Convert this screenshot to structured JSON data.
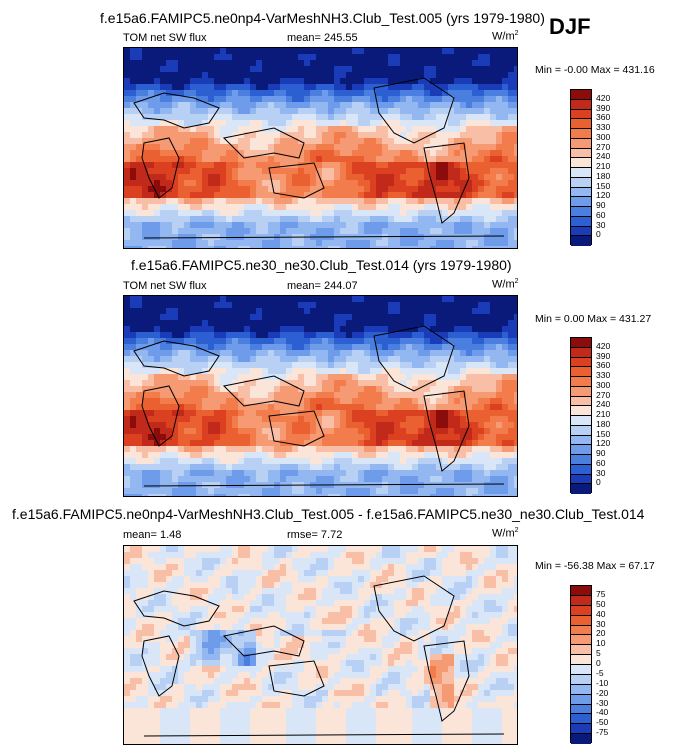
{
  "season_label": "DJF",
  "chart_data": [
    {
      "type": "heatmap",
      "title": "f.e15a6.FAMIPC5.ne0np4-VarMeshNH3.Club_Test.005 (yrs 1979-1980)",
      "left_label": "TOM net SW flux",
      "center_label": "mean= 245.55",
      "units": "W/m",
      "units_sup": "2",
      "min_max": "Min = -0.00 Max = 431.16",
      "colorbar_labels": [
        "420",
        "390",
        "360",
        "330",
        "300",
        "270",
        "240",
        "210",
        "180",
        "150",
        "120",
        "90",
        "60",
        "30",
        "0"
      ],
      "colorbar_colors": [
        "#8c0b0b",
        "#c12a1a",
        "#db4120",
        "#ea6030",
        "#f27c4b",
        "#f59a72",
        "#f8bea6",
        "#fbe4d8",
        "#d8e6f8",
        "#b8d0f4",
        "#93b7f0",
        "#6e9cea",
        "#4a7fe0",
        "#2c5fd2",
        "#1a3cb8",
        "#0a1a7a"
      ]
    },
    {
      "type": "heatmap",
      "title": "f.e15a6.FAMIPC5.ne30_ne30.Club_Test.014 (yrs 1979-1980)",
      "left_label": "TOM net SW flux",
      "center_label": "mean= 244.07",
      "units": "W/m",
      "units_sup": "2",
      "min_max": "Min = 0.00 Max = 431.27",
      "colorbar_labels": [
        "420",
        "390",
        "360",
        "330",
        "300",
        "270",
        "240",
        "210",
        "180",
        "150",
        "120",
        "90",
        "60",
        "30",
        "0"
      ],
      "colorbar_colors": [
        "#8c0b0b",
        "#c12a1a",
        "#db4120",
        "#ea6030",
        "#f27c4b",
        "#f59a72",
        "#f8bea6",
        "#fbe4d8",
        "#d8e6f8",
        "#b8d0f4",
        "#93b7f0",
        "#6e9cea",
        "#4a7fe0",
        "#2c5fd2",
        "#1a3cb8",
        "#0a1a7a"
      ]
    },
    {
      "type": "heatmap",
      "title": "f.e15a6.FAMIPC5.ne0np4-VarMeshNH3.Club_Test.005 - f.e15a6.FAMIPC5.ne30_ne30.Club_Test.014",
      "left_label": "mean= 1.48",
      "center_label": "rmse= 7.72",
      "units": "W/m",
      "units_sup": "2",
      "min_max": "Min = -56.38 Max = 67.17",
      "colorbar_labels": [
        "75",
        "50",
        "40",
        "30",
        "20",
        "10",
        "5",
        "0",
        "-5",
        "-10",
        "-20",
        "-30",
        "-40",
        "-50",
        "-75"
      ],
      "colorbar_colors": [
        "#8c0b0b",
        "#c12a1a",
        "#db4120",
        "#ea6030",
        "#f27c4b",
        "#f59a72",
        "#f8bea6",
        "#fbe4d8",
        "#d8e6f8",
        "#b8d0f4",
        "#93b7f0",
        "#6e9cea",
        "#4a7fe0",
        "#2c5fd2",
        "#1a3cb8",
        "#0a1a7a"
      ]
    }
  ]
}
